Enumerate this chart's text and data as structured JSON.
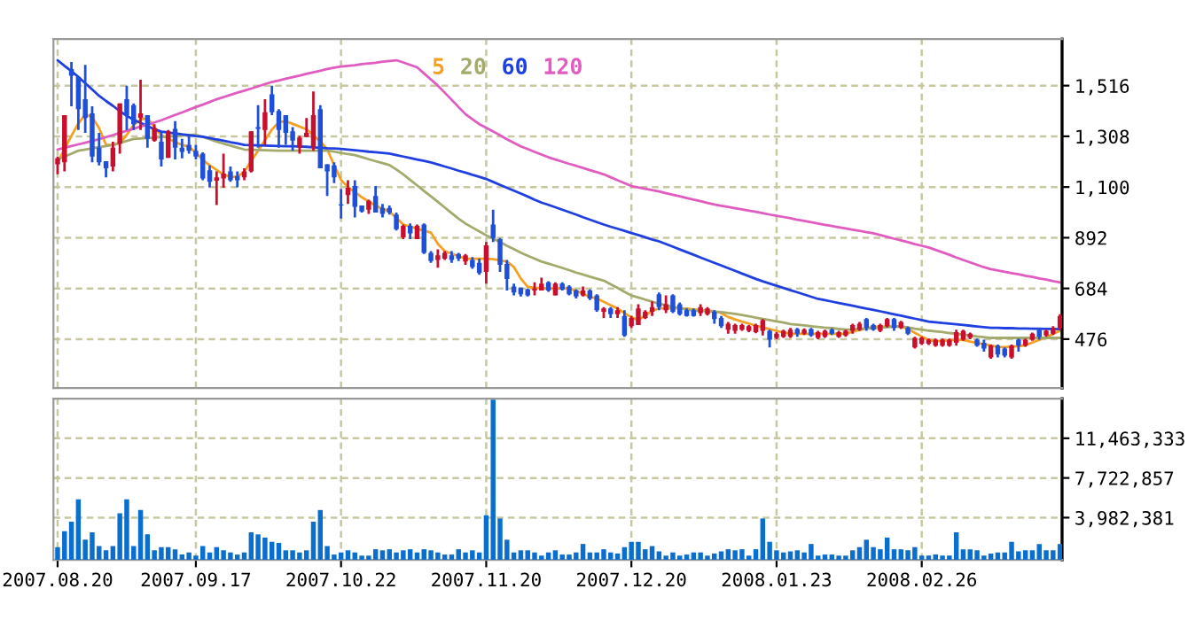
{
  "chart_data": [
    {
      "type": "candlestick",
      "categories": [
        "2007.08.20",
        null,
        null,
        null,
        null,
        null,
        null,
        null,
        null,
        null,
        null,
        null,
        null,
        null,
        null,
        null,
        null,
        null,
        null,
        null,
        "2007.09.17",
        null,
        null,
        null,
        null,
        null,
        null,
        null,
        null,
        null,
        null,
        null,
        null,
        null,
        null,
        null,
        null,
        null,
        null,
        null,
        null,
        "2007.10.22",
        null,
        null,
        null,
        null,
        null,
        null,
        null,
        null,
        null,
        null,
        null,
        null,
        null,
        null,
        null,
        null,
        null,
        null,
        null,
        null,
        "2007.11.20",
        null,
        null,
        null,
        null,
        null,
        null,
        null,
        null,
        null,
        null,
        null,
        null,
        null,
        null,
        null,
        null,
        null,
        null,
        null,
        null,
        "2007.12.20",
        null,
        null,
        null,
        null,
        null,
        null,
        null,
        null,
        null,
        null,
        null,
        null,
        null,
        null,
        null,
        null,
        null,
        null,
        null,
        null,
        "2008.01.23",
        null,
        null,
        null,
        null,
        null,
        null,
        null,
        null,
        null,
        null,
        null,
        null,
        null,
        null,
        null,
        null,
        null,
        null,
        null,
        null,
        "2008.02.26",
        null,
        null,
        null,
        null,
        null,
        null,
        null,
        null,
        null,
        null,
        null,
        null,
        null,
        null,
        null,
        null,
        null,
        null,
        null,
        null
      ],
      "colors": [
        "#c8102e",
        "#c8102e",
        "#1f4fd8",
        "#1f4fd8",
        "#1f4fd8",
        "#1f4fd8",
        "#1f4fd8",
        "#1f4fd8",
        "#c8102e",
        "#c8102e",
        "#1f4fd8",
        "#1f4fd8",
        "#c8102e",
        "#1f4fd8",
        "#c8102e",
        "#1f4fd8",
        "#c8102e",
        "#1f4fd8",
        "#1f4fd8",
        "#1f4fd8",
        "#1f4fd8",
        "#1f4fd8",
        "#1f4fd8",
        "#c8102e",
        "#c8102e",
        "#1f4fd8",
        "#1f4fd8",
        "#c8102e",
        "#c8102e",
        "#1f4fd8",
        "#c8102e",
        "#1f4fd8",
        "#1f4fd8",
        "#1f4fd8",
        "#1f4fd8",
        "#c8102e",
        "#c8102e",
        "#c8102e",
        "#1f4fd8",
        "#1f4fd8",
        "#1f4fd8",
        "#1f4fd8",
        "#c8102e",
        "#1f4fd8",
        "#1f4fd8",
        "#c8102e",
        "#1f4fd8",
        "#1f4fd8",
        "#1f4fd8",
        "#1f4fd8",
        "#c8102e",
        "#1f4fd8",
        "#c8102e",
        "#1f4fd8",
        "#1f4fd8",
        "#c8102e",
        "#c8102e",
        "#1f4fd8",
        "#1f4fd8",
        "#c8102e",
        "#1f4fd8",
        "#1f4fd8",
        "#c8102e",
        "#1f4fd8",
        "#1f4fd8",
        "#1f4fd8",
        "#1f4fd8",
        "#1f4fd8",
        "#1f4fd8",
        "#c8102e",
        "#c8102e",
        "#1f4fd8",
        "#c8102e",
        "#1f4fd8",
        "#1f4fd8",
        "#1f4fd8",
        "#c8102e",
        "#1f4fd8",
        "#1f4fd8",
        "#c8102e",
        "#1f4fd8",
        "#c8102e",
        "#1f4fd8",
        "#c8102e",
        "#c8102e",
        "#c8102e",
        "#c8102e",
        "#1f4fd8",
        "#c8102e",
        "#1f4fd8",
        "#1f4fd8",
        "#1f4fd8",
        "#1f4fd8",
        "#c8102e",
        "#c8102e",
        "#1f4fd8",
        "#1f4fd8",
        "#c8102e",
        "#c8102e",
        "#c8102e",
        "#c8102e",
        "#c8102e",
        "#c8102e",
        "#1f4fd8",
        "#c8102e",
        "#c8102e",
        "#c8102e",
        "#1f4fd8",
        "#c8102e",
        "#1f4fd8",
        "#c8102e",
        "#c8102e",
        "#1f4fd8",
        "#c8102e",
        "#c8102e",
        "#c8102e",
        "#c8102e",
        "#1f4fd8",
        "#1f4fd8",
        "#c8102e",
        "#c8102e",
        "#1f4fd8",
        "#c8102e",
        "#1f4fd8",
        "#c8102e",
        "#c8102e",
        "#c8102e",
        "#c8102e",
        "#c8102e",
        "#c8102e",
        "#c8102e",
        "#c8102e",
        "#c8102e",
        "#1f4fd8",
        "#1f4fd8",
        "#c8102e",
        "#1f4fd8",
        "#1f4fd8",
        "#c8102e",
        "#1f4fd8",
        "#c8102e",
        "#c8102e",
        "#1f4fd8",
        "#c8102e",
        "#c8102e",
        "#c8102e"
      ],
      "ohlc": [
        [
          1193,
          1225,
          1152,
          1218
        ],
        [
          1201,
          1395,
          1164,
          1395
        ],
        [
          1584,
          1613,
          1431,
          1557
        ],
        [
          1552,
          1552,
          1334,
          1419
        ],
        [
          1460,
          1601,
          1322,
          1383
        ],
        [
          1402,
          1431,
          1201,
          1225
        ],
        [
          1261,
          1322,
          1189,
          1201
        ],
        [
          1206,
          1206,
          1140,
          1177
        ],
        [
          1184,
          1286,
          1164,
          1261
        ],
        [
          1278,
          1443,
          1237,
          1443
        ],
        [
          1460,
          1516,
          1334,
          1395
        ],
        [
          1436,
          1443,
          1334,
          1358
        ],
        [
          1383,
          1540,
          1334,
          1402
        ],
        [
          1395,
          1395,
          1261,
          1298
        ],
        [
          1290,
          1358,
          1286,
          1341
        ],
        [
          1286,
          1322,
          1184,
          1213
        ],
        [
          1220,
          1334,
          1220,
          1329
        ],
        [
          1339,
          1370,
          1213,
          1261
        ],
        [
          1261,
          1298,
          1218,
          1244
        ],
        [
          1273,
          1310,
          1237,
          1249
        ],
        [
          1249,
          1273,
          1213,
          1225
        ],
        [
          1237,
          1242,
          1128,
          1135
        ],
        [
          1169,
          1189,
          1099,
          1121
        ],
        [
          1126,
          1164,
          1026,
          1140
        ],
        [
          1135,
          1237,
          1097,
          1155
        ],
        [
          1164,
          1184,
          1121,
          1128
        ],
        [
          1145,
          1164,
          1099,
          1128
        ],
        [
          1140,
          1177,
          1128,
          1164
        ],
        [
          1164,
          1329,
          1160,
          1329
        ],
        [
          1346,
          1436,
          1261,
          1339
        ],
        [
          1334,
          1460,
          1273,
          1407
        ],
        [
          1480,
          1516,
          1395,
          1407
        ],
        [
          1412,
          1419,
          1261,
          1334
        ],
        [
          1395,
          1395,
          1273,
          1322
        ],
        [
          1329,
          1346,
          1249,
          1290
        ],
        [
          1261,
          1310,
          1237,
          1303
        ],
        [
          1305,
          1383,
          1305,
          1322
        ],
        [
          1266,
          1492,
          1249,
          1395
        ],
        [
          1419,
          1436,
          1177,
          1177
        ],
        [
          1193,
          1193,
          1063,
          1164
        ],
        [
          1189,
          1201,
          1116,
          1140
        ],
        [
          1029,
          1092,
          971,
          1024
        ],
        [
          1067,
          1128,
          1031,
          1097
        ],
        [
          1104,
          1128,
          975,
          1019
        ],
        [
          1024,
          1024,
          995,
          1000
        ],
        [
          1007,
          1048,
          990,
          1043
        ],
        [
          1063,
          1104,
          995,
          995
        ],
        [
          1014,
          1031,
          975,
          990
        ],
        [
          1014,
          1024,
          987,
          995
        ],
        [
          987,
          995,
          922,
          927
        ],
        [
          893,
          946,
          886,
          941
        ],
        [
          941,
          951,
          886,
          910
        ],
        [
          886,
          946,
          886,
          941
        ],
        [
          946,
          951,
          825,
          830
        ],
        [
          830,
          837,
          789,
          796
        ],
        [
          801,
          844,
          769,
          820
        ],
        [
          806,
          837,
          801,
          830
        ],
        [
          820,
          837,
          789,
          801
        ],
        [
          825,
          830,
          796,
          806
        ],
        [
          794,
          825,
          781,
          820
        ],
        [
          801,
          813,
          764,
          772
        ],
        [
          789,
          806,
          740,
          747
        ],
        [
          752,
          874,
          704,
          861
        ],
        [
          946,
          1007,
          874,
          891
        ],
        [
          886,
          891,
          752,
          781
        ],
        [
          784,
          801,
          675,
          723
        ],
        [
          692,
          704,
          655,
          667
        ],
        [
          687,
          687,
          651,
          660
        ],
        [
          680,
          684,
          651,
          655
        ],
        [
          675,
          709,
          655,
          684
        ],
        [
          675,
          728,
          675,
          704
        ],
        [
          709,
          714,
          670,
          675
        ],
        [
          655,
          709,
          655,
          704
        ],
        [
          704,
          709,
          675,
          680
        ],
        [
          692,
          697,
          655,
          660
        ],
        [
          675,
          680,
          643,
          651
        ],
        [
          655,
          692,
          651,
          675
        ],
        [
          675,
          680,
          636,
          643
        ],
        [
          655,
          660,
          588,
          595
        ],
        [
          588,
          607,
          563,
          602
        ],
        [
          602,
          607,
          563,
          578
        ],
        [
          578,
          607,
          563,
          595
        ],
        [
          571,
          595,
          486,
          491
        ],
        [
          529,
          571,
          522,
          563
        ],
        [
          534,
          619,
          534,
          602
        ],
        [
          563,
          595,
          558,
          588
        ],
        [
          588,
          631,
          571,
          607
        ],
        [
          660,
          667,
          595,
          607
        ],
        [
          595,
          655,
          583,
          619
        ],
        [
          655,
          660,
          583,
          588
        ],
        [
          619,
          626,
          573,
          578
        ],
        [
          595,
          602,
          568,
          571
        ],
        [
          595,
          602,
          568,
          571
        ],
        [
          583,
          619,
          571,
          607
        ],
        [
          578,
          607,
          573,
          602
        ],
        [
          588,
          595,
          539,
          558
        ],
        [
          563,
          571,
          522,
          529
        ],
        [
          515,
          546,
          498,
          539
        ],
        [
          510,
          539,
          498,
          534
        ],
        [
          515,
          539,
          510,
          534
        ],
        [
          510,
          534,
          505,
          529
        ],
        [
          505,
          539,
          500,
          534
        ],
        [
          510,
          558,
          491,
          554
        ],
        [
          510,
          515,
          442,
          474
        ],
        [
          481,
          505,
          476,
          498
        ],
        [
          486,
          515,
          481,
          510
        ],
        [
          486,
          522,
          481,
          515
        ],
        [
          517,
          522,
          486,
          498
        ],
        [
          498,
          520,
          493,
          515
        ],
        [
          517,
          522,
          486,
          491
        ],
        [
          481,
          510,
          476,
          505
        ],
        [
          486,
          515,
          481,
          510
        ],
        [
          515,
          520,
          493,
          498
        ],
        [
          486,
          510,
          481,
          505
        ],
        [
          491,
          515,
          486,
          510
        ],
        [
          510,
          539,
          498,
          534
        ],
        [
          515,
          546,
          510,
          539
        ],
        [
          558,
          563,
          510,
          522
        ],
        [
          534,
          539,
          510,
          515
        ],
        [
          510,
          539,
          505,
          534
        ],
        [
          529,
          563,
          524,
          558
        ],
        [
          558,
          563,
          510,
          522
        ],
        [
          522,
          551,
          517,
          546
        ],
        [
          522,
          527,
          493,
          498
        ],
        [
          442,
          486,
          437,
          481
        ],
        [
          457,
          486,
          452,
          481
        ],
        [
          457,
          478,
          452,
          474
        ],
        [
          449,
          478,
          445,
          474
        ],
        [
          449,
          478,
          445,
          474
        ],
        [
          449,
          478,
          445,
          474
        ],
        [
          461,
          515,
          449,
          505
        ],
        [
          474,
          515,
          469,
          510
        ],
        [
          481,
          503,
          476,
          498
        ],
        [
          474,
          478,
          445,
          449
        ],
        [
          461,
          474,
          425,
          437
        ],
        [
          401,
          454,
          396,
          449
        ],
        [
          449,
          454,
          401,
          413
        ],
        [
          437,
          442,
          401,
          408
        ],
        [
          401,
          454,
          396,
          449
        ],
        [
          474,
          478,
          425,
          449
        ],
        [
          449,
          478,
          445,
          474
        ],
        [
          474,
          503,
          469,
          498
        ],
        [
          515,
          522,
          474,
          486
        ],
        [
          491,
          515,
          486,
          510
        ],
        [
          498,
          529,
          493,
          522
        ],
        [
          522,
          578,
          515,
          571
        ]
      ],
      "series": [
        {
          "name": "5",
          "type": "line",
          "color": "#f5a023",
          "values": [
            1201,
            1256,
            1310,
            1361,
            1397,
            1387,
            1342,
            1273,
            1273,
            1280,
            1314,
            1355,
            1376,
            1383,
            1345,
            1313,
            1299,
            1284,
            1273,
            1265,
            1241,
            1211,
            1189,
            1170,
            1151,
            1141,
            1143,
            1162,
            1207,
            1249,
            1292,
            1336,
            1366,
            1370,
            1359,
            1348,
            1337,
            1313,
            1286,
            1255,
            1190,
            1129,
            1100,
            1079,
            1058,
            1041,
            1023,
            1011,
            1000,
            973,
            946,
            938,
            929,
            921,
            913,
            867,
            837,
            827,
            816,
            806,
            806,
            806,
            806,
            804,
            799,
            794,
            772,
            725,
            690,
            687,
            685,
            684,
            684,
            684,
            684,
            675,
            662,
            649,
            643,
            629,
            615,
            602,
            582,
            566,
            554,
            573,
            592,
            602,
            602,
            602,
            602,
            601,
            598,
            595,
            592,
            590,
            583,
            567,
            557,
            548,
            540,
            531,
            524,
            517,
            510,
            503,
            498,
            498,
            498,
            498,
            498,
            498,
            498,
            498,
            498,
            507,
            513,
            520,
            527,
            527,
            528,
            528,
            529,
            517,
            502,
            487,
            472,
            467,
            469,
            471,
            473,
            472,
            466,
            461,
            455,
            450,
            444,
            443,
            445,
            447,
            451,
            462,
            473,
            484,
            497,
            510
          ]
        },
        {
          "name": "20",
          "type": "line",
          "color": "#a4aa6c",
          "values": [
            1213,
            1225,
            1237,
            1249,
            1254,
            1259,
            1264,
            1268,
            1273,
            1281,
            1289,
            1297,
            1299,
            1301,
            1303,
            1305,
            1307,
            1309,
            1311,
            1313,
            1315,
            1305,
            1296,
            1286,
            1278,
            1270,
            1262,
            1254,
            1253,
            1252,
            1251,
            1250,
            1249,
            1249,
            1249,
            1249,
            1249,
            1249,
            1249,
            1249,
            1245,
            1240,
            1235,
            1231,
            1223,
            1214,
            1206,
            1198,
            1190,
            1172,
            1152,
            1129,
            1107,
            1084,
            1062,
            1039,
            1016,
            993,
            970,
            950,
            934,
            918,
            902,
            888,
            874,
            859,
            845,
            831,
            818,
            806,
            794,
            786,
            777,
            768,
            759,
            749,
            741,
            732,
            724,
            716,
            701,
            686,
            670,
            655,
            647,
            638,
            630,
            621,
            615,
            609,
            603,
            598,
            593,
            592,
            590,
            589,
            587,
            583,
            580,
            575,
            570,
            564,
            559,
            554,
            549,
            544,
            538,
            535,
            532,
            529,
            526,
            523,
            521,
            518,
            515,
            516,
            518,
            520,
            521,
            523,
            525,
            527,
            528,
            524,
            519,
            515,
            511,
            508,
            505,
            501,
            498,
            494,
            491,
            487,
            484,
            481,
            481,
            481,
            481,
            481,
            481,
            481,
            481,
            481,
            481,
            481
          ]
        },
        {
          "name": "60",
          "type": "line",
          "color": "#1f3fe0",
          "values": [
            1620,
            1597,
            1575,
            1552,
            1526,
            1500,
            1474,
            1453,
            1433,
            1412,
            1392,
            1376,
            1363,
            1350,
            1337,
            1327,
            1324,
            1320,
            1316,
            1313,
            1309,
            1306,
            1301,
            1295,
            1290,
            1284,
            1279,
            1273,
            1272,
            1271,
            1270,
            1269,
            1268,
            1267,
            1267,
            1266,
            1265,
            1263,
            1261,
            1259,
            1258,
            1256,
            1254,
            1251,
            1248,
            1245,
            1243,
            1240,
            1237,
            1231,
            1225,
            1219,
            1213,
            1207,
            1201,
            1193,
            1184,
            1176,
            1167,
            1159,
            1150,
            1142,
            1133,
            1121,
            1109,
            1097,
            1085,
            1073,
            1061,
            1048,
            1036,
            1027,
            1017,
            1007,
            997,
            987,
            976,
            966,
            956,
            946,
            937,
            929,
            920,
            911,
            903,
            894,
            885,
            877,
            866,
            855,
            844,
            833,
            822,
            811,
            800,
            789,
            778,
            767,
            756,
            745,
            734,
            723,
            713,
            704,
            695,
            686,
            677,
            668,
            659,
            650,
            641,
            636,
            630,
            624,
            619,
            613,
            607,
            601,
            596,
            590,
            584,
            578,
            572,
            566,
            560,
            554,
            548,
            545,
            542,
            540,
            537,
            534,
            531,
            528,
            525,
            522,
            522,
            521,
            521,
            520,
            520,
            519,
            519,
            518,
            518,
            517
          ]
        },
        {
          "name": "120",
          "type": "line",
          "color": "#e05cc0",
          "values": [
            1254,
            1261,
            1268,
            1275,
            1282,
            1289,
            1296,
            1305,
            1313,
            1322,
            1331,
            1339,
            1348,
            1356,
            1365,
            1374,
            1385,
            1396,
            1406,
            1417,
            1428,
            1438,
            1449,
            1460,
            1469,
            1478,
            1487,
            1495,
            1504,
            1513,
            1522,
            1531,
            1537,
            1544,
            1551,
            1557,
            1564,
            1571,
            1577,
            1584,
            1590,
            1594,
            1597,
            1600,
            1604,
            1607,
            1610,
            1614,
            1617,
            1620,
            1611,
            1601,
            1591,
            1566,
            1541,
            1516,
            1487,
            1458,
            1428,
            1399,
            1378,
            1358,
            1343,
            1328,
            1312,
            1296,
            1281,
            1267,
            1256,
            1244,
            1233,
            1222,
            1213,
            1204,
            1195,
            1187,
            1178,
            1169,
            1161,
            1152,
            1140,
            1128,
            1116,
            1104,
            1098,
            1093,
            1087,
            1082,
            1075,
            1068,
            1062,
            1055,
            1048,
            1042,
            1035,
            1028,
            1023,
            1018,
            1013,
            1008,
            1003,
            998,
            993,
            987,
            982,
            977,
            972,
            966,
            961,
            956,
            950,
            945,
            940,
            935,
            930,
            925,
            920,
            915,
            910,
            903,
            896,
            888,
            881,
            874,
            866,
            859,
            852,
            842,
            832,
            822,
            811,
            801,
            791,
            781,
            771,
            763,
            758,
            752,
            747,
            742,
            736,
            731,
            725,
            720,
            714,
            709
          ]
        }
      ],
      "ylim": [
        275,
        1707
      ],
      "yticks": [
        {
          "value": 476,
          "label": "476"
        },
        {
          "value": 684,
          "label": "684"
        },
        {
          "value": 892,
          "label": "892"
        },
        {
          "value": 1100,
          "label": "1,100"
        },
        {
          "value": 1308,
          "label": "1,308"
        },
        {
          "value": 1516,
          "label": "1,516"
        }
      ],
      "tick_labels": "y",
      "grid": true,
      "legend": "top"
    },
    {
      "type": "bar",
      "color": "#0a6ecf",
      "categories": [
        "2007.08.20",
        null,
        null,
        null,
        null,
        null,
        null,
        null,
        null,
        null,
        null,
        null,
        null,
        null,
        null,
        null,
        null,
        null,
        null,
        null,
        "2007.09.17",
        null,
        null,
        null,
        null,
        null,
        null,
        null,
        null,
        null,
        null,
        null,
        null,
        null,
        null,
        null,
        null,
        null,
        null,
        null,
        null,
        "2007.10.22",
        null,
        null,
        null,
        null,
        null,
        null,
        null,
        null,
        null,
        null,
        null,
        null,
        null,
        null,
        null,
        null,
        null,
        null,
        null,
        null,
        "2007.11.20",
        null,
        null,
        null,
        null,
        null,
        null,
        null,
        null,
        null,
        null,
        null,
        null,
        null,
        null,
        null,
        null,
        null,
        null,
        null,
        null,
        "2007.12.20",
        null,
        null,
        null,
        null,
        null,
        null,
        null,
        null,
        null,
        null,
        null,
        null,
        null,
        null,
        null,
        null,
        null,
        null,
        null,
        null,
        "2008.01.23",
        null,
        null,
        null,
        null,
        null,
        null,
        null,
        null,
        null,
        null,
        null,
        null,
        null,
        null,
        null,
        null,
        null,
        null,
        null,
        null,
        "2008.02.26",
        null,
        null,
        null,
        null,
        null,
        null,
        null,
        null,
        null,
        null,
        null,
        null,
        null,
        null,
        null,
        null,
        null,
        null,
        null,
        null
      ],
      "values": [
        1200000,
        2700000,
        3600000,
        5700000,
        1900000,
        2600000,
        1300000,
        900000,
        1300000,
        4400000,
        5700000,
        1300000,
        4700000,
        2400000,
        900000,
        1200000,
        1200000,
        1000000,
        500000,
        700000,
        400000,
        1300000,
        700000,
        1200000,
        900000,
        700000,
        500000,
        700000,
        2600000,
        2400000,
        2100000,
        1700000,
        1600000,
        900000,
        900000,
        700000,
        900000,
        3600000,
        4700000,
        1300000,
        500000,
        700000,
        900000,
        700000,
        400000,
        400000,
        1000000,
        900000,
        1000000,
        700000,
        900000,
        1000000,
        700000,
        1000000,
        900000,
        700000,
        500000,
        500000,
        1000000,
        700000,
        900000,
        700000,
        4200000,
        15100000,
        3900000,
        1900000,
        700000,
        900000,
        900000,
        700000,
        400000,
        700000,
        900000,
        500000,
        500000,
        700000,
        1500000,
        700000,
        700000,
        1000000,
        700000,
        600000,
        1200000,
        1700000,
        1700000,
        1000000,
        1300000,
        800000,
        400000,
        700000,
        400000,
        500000,
        700000,
        700000,
        400000,
        600000,
        800000,
        1000000,
        900000,
        1000000,
        400000,
        1000000,
        3900000,
        1700000,
        900000,
        700000,
        800000,
        900000,
        700000,
        1500000,
        400000,
        500000,
        500000,
        400000,
        400000,
        900000,
        1200000,
        1900000,
        1200000,
        1000000,
        2100000,
        1000000,
        1000000,
        900000,
        1200000,
        400000,
        400000,
        500000,
        400000,
        400000,
        2600000,
        1000000,
        1000000,
        900000,
        400000,
        600000,
        700000,
        700000,
        1700000,
        800000,
        900000,
        900000,
        1500000,
        900000,
        900000,
        1500000
      ],
      "ylim": [
        0,
        15200000
      ],
      "yticks": [
        {
          "value": 3982381,
          "label": "3,982,381"
        },
        {
          "value": 7722857,
          "label": "7,722,857"
        },
        {
          "value": 11463333,
          "label": "11,463,333"
        }
      ],
      "grid": true
    }
  ]
}
